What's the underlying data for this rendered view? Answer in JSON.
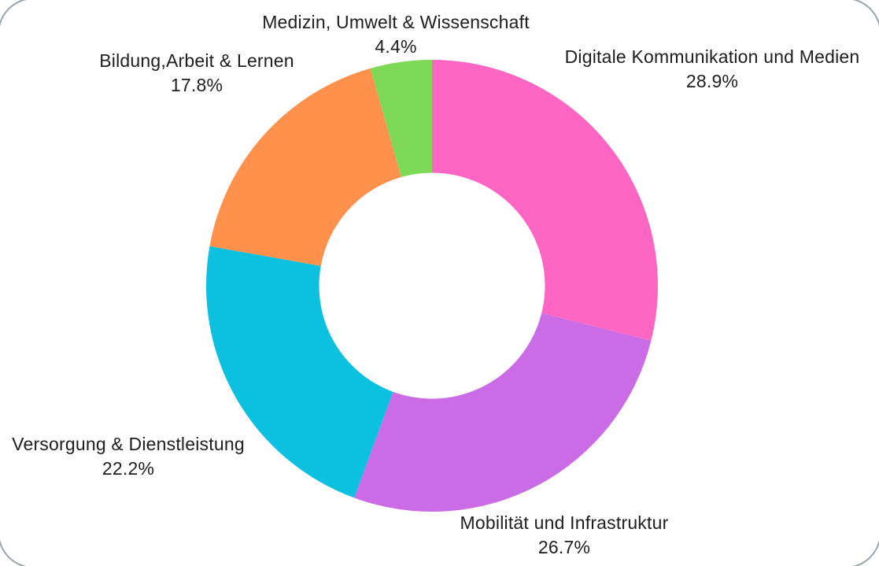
{
  "page": {
    "background_color": "#ffffff",
    "frame_color": "#9aa2af"
  },
  "chart_data": {
    "type": "pie",
    "subtype": "donut",
    "title": "",
    "legend_position": "none",
    "labels_outside": true,
    "start_angle_deg": 0,
    "direction": "clockwise",
    "donut_hole_ratio": 0.5,
    "segments": [
      {
        "label": "Digitale Kommunikation und Medien",
        "value": 28.9,
        "pct_label": "28.9%",
        "color": "#FF66C4"
      },
      {
        "label": "Mobilität und Infrastruktur",
        "value": 26.7,
        "pct_label": "26.7%",
        "color": "#CB6CE6"
      },
      {
        "label": "Versorgung & Dienstleistung",
        "value": 22.2,
        "pct_label": "22.2%",
        "color": "#0CC0DF"
      },
      {
        "label": "Bildung,Arbeit & Lernen",
        "value": 17.8,
        "pct_label": "17.8%",
        "color": "#FF914D"
      },
      {
        "label": "Medizin, Umwelt & Wissenschaft",
        "value": 4.4,
        "pct_label": "4.4%",
        "color": "#7ED957"
      }
    ]
  }
}
